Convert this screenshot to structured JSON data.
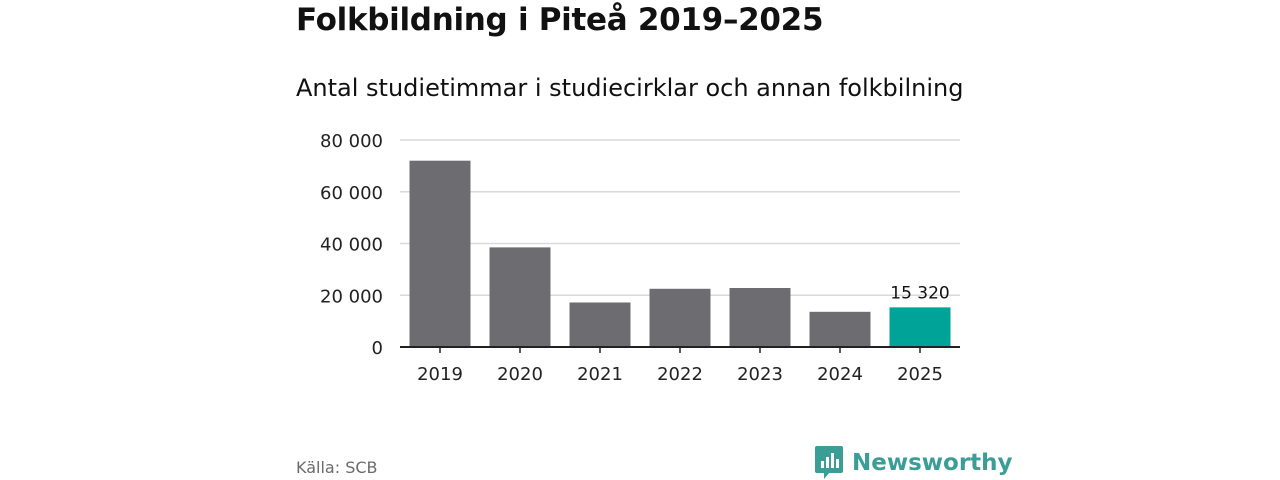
{
  "title": "Folkbildning i Piteå 2019–2025",
  "subtitle": "Antal studietimmar i studiecirklar och annan folkbilning",
  "source": "Källa: SCB",
  "brand": {
    "name": "Newsworthy",
    "icon": "newsworthy-logo-icon"
  },
  "colors": {
    "bar": "#6d6c71",
    "highlight": "#00a398",
    "grid": "#d9d9d9",
    "axis": "#222222",
    "brand": "#3a9e96"
  },
  "chart_data": {
    "type": "bar",
    "title": "Folkbildning i Piteå 2019–2025",
    "subtitle": "Antal studietimmar i studiecirklar och annan folkbilning",
    "xlabel": "",
    "ylabel": "",
    "categories": [
      "2019",
      "2020",
      "2021",
      "2022",
      "2023",
      "2024",
      "2025"
    ],
    "values": [
      72000,
      38500,
      17200,
      22500,
      22800,
      13600,
      15320
    ],
    "highlight_index": 6,
    "data_labels": [
      {
        "index": 6,
        "text": "15 320"
      }
    ],
    "ylim": [
      0,
      80000
    ],
    "yticks": [
      0,
      20000,
      40000,
      60000,
      80000
    ],
    "ytick_labels": [
      "0",
      "20 000",
      "40 000",
      "60 000",
      "80 000"
    ],
    "grid": true
  }
}
